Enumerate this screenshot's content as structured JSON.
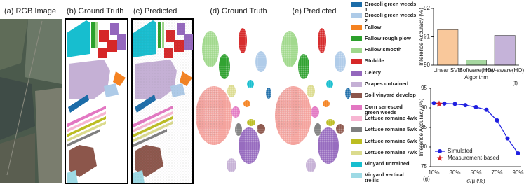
{
  "panel_titles": [
    "(a) RGB Image",
    "(b) Ground Truth",
    "(c) Predicted",
    "(d) Ground Truth",
    "(e) Predicted"
  ],
  "legend": [
    {
      "label": "Brocoli green weeds 1",
      "color": "#1b6ca8"
    },
    {
      "label": "Brocoli green weeds 2",
      "color": "#aecbe8"
    },
    {
      "label": "Fallow",
      "color": "#f58220"
    },
    {
      "label": "Fallow rough plow",
      "color": "#2ca02c"
    },
    {
      "label": "Fallow smooth",
      "color": "#9fd88b"
    },
    {
      "label": "Stubble",
      "color": "#d62728"
    },
    {
      "label": "Celery",
      "color": "#9467bd"
    },
    {
      "label": "Grapes untrained",
      "color": "#c5b0d5"
    },
    {
      "label": "Soil vinyard develop",
      "color": "#8c564b"
    },
    {
      "label": "Corn senesced green weeds",
      "color": "#e377c2"
    },
    {
      "label": "Lettuce romaine 4wk",
      "color": "#f7b6d2"
    },
    {
      "label": "Lettuce romaine 5wk",
      "color": "#7f7f7f"
    },
    {
      "label": "Lettuce romaine 6wk",
      "color": "#bcbd22"
    },
    {
      "label": "Lettuce romaine 7wk",
      "color": "#dbdb8d"
    },
    {
      "label": "Vinyard untrained",
      "color": "#17becf"
    },
    {
      "label": "Vinyard vertical trellis",
      "color": "#9edae5"
    }
  ],
  "chart_data": [
    {
      "type": "bar",
      "label": "(f)",
      "xlabel": "Algorithm",
      "ylabel": "Inference Accuracy (%)",
      "categories": [
        "Linear SVM",
        "Software(HO)",
        "HW-aware(HO)"
      ],
      "values": [
        91.25,
        90.18,
        91.05
      ],
      "colors": [
        "#f9c89b",
        "#a6d7a0",
        "#c5b3d9"
      ],
      "ylim": [
        90,
        92
      ],
      "yticks": [
        90,
        91,
        92
      ]
    },
    {
      "type": "line",
      "label": "(g)",
      "xlabel": "σ/μ (%)",
      "ylabel": "Inference Accuracy (%)",
      "series": [
        {
          "name": "Simulated",
          "color": "#1f1fe0",
          "marker": "circle",
          "x": [
            10,
            20,
            30,
            40,
            50,
            60,
            70,
            80,
            90
          ],
          "values": [
            91.2,
            91.1,
            91.0,
            90.7,
            90.2,
            89.5,
            86.8,
            82.2,
            78.4
          ]
        },
        {
          "name": "Measurement-based",
          "color": "#d62728",
          "marker": "star",
          "x": [
            15
          ],
          "values": [
            91.0
          ]
        }
      ],
      "xlim": [
        7,
        93
      ],
      "xticks": [
        {
          "value": 10,
          "label": "10%"
        },
        {
          "value": 30,
          "label": "30%"
        },
        {
          "value": 50,
          "label": "50%"
        },
        {
          "value": 70,
          "label": "70%"
        },
        {
          "value": 90,
          "label": "90%"
        }
      ],
      "ylim": [
        75,
        95
      ],
      "yticks": [
        75,
        80,
        85,
        90,
        95
      ],
      "grid": false,
      "legend": "lower left"
    }
  ]
}
